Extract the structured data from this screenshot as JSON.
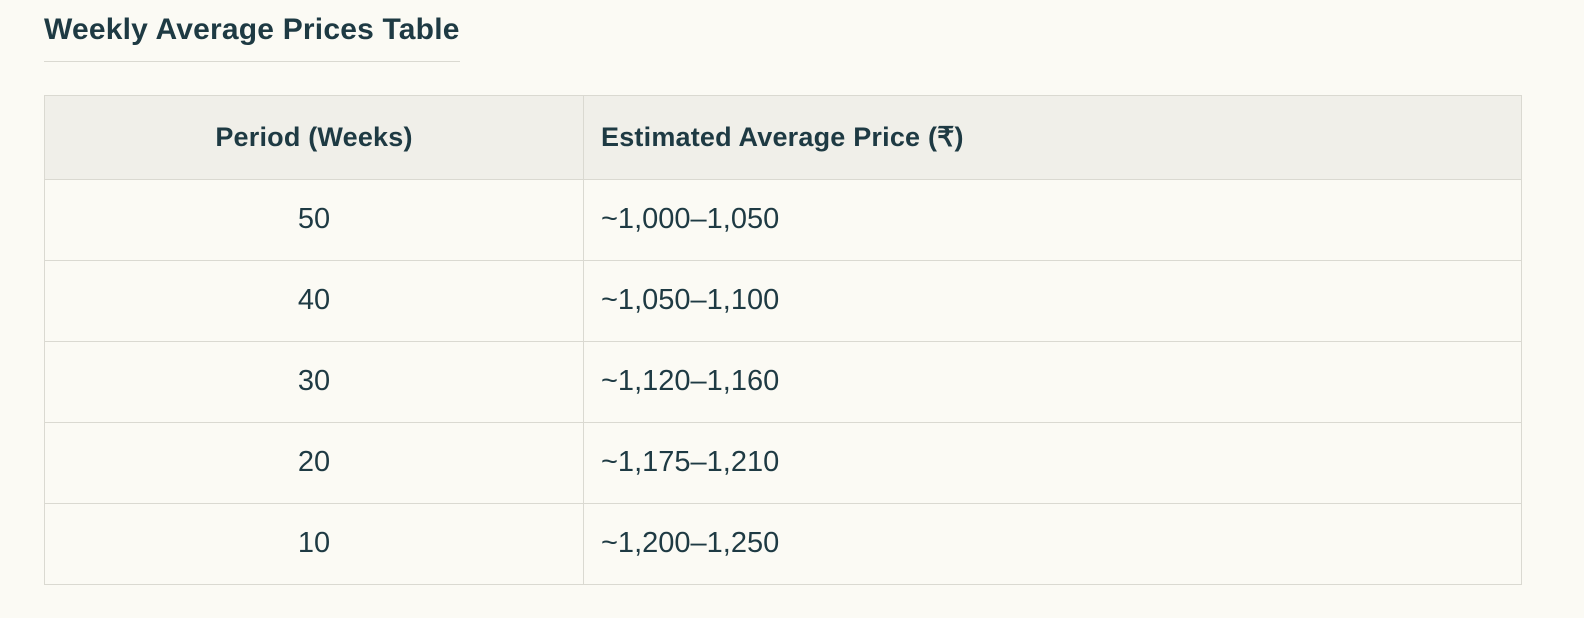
{
  "title": {
    "text": "Weekly Average Prices Table"
  },
  "table": {
    "headers": {
      "period": "Period (Weeks)",
      "price": "Estimated Average Price (₹)"
    },
    "rows": [
      {
        "period": "50",
        "price": "~1,000–1,050"
      },
      {
        "period": "40",
        "price": "~1,050–1,100"
      },
      {
        "period": "30",
        "price": "~1,120–1,160"
      },
      {
        "period": "20",
        "price": "~1,175–1,210"
      },
      {
        "period": "10",
        "price": "~1,200–1,250"
      }
    ]
  },
  "colors": {
    "text": "#1e3a43",
    "page_bg": "#fbfaf4",
    "header_bg": "#f0efe9",
    "border": "#dad9d1"
  },
  "chart_data": {
    "type": "table",
    "title": "Weekly Average Prices Table",
    "columns": [
      "Period (Weeks)",
      "Estimated Average Price (₹)"
    ],
    "rows": [
      [
        "50",
        "~1,000–1,050"
      ],
      [
        "40",
        "~1,050–1,100"
      ],
      [
        "30",
        "~1,120–1,160"
      ],
      [
        "20",
        "~1,175–1,210"
      ],
      [
        "10",
        "~1,200–1,250"
      ]
    ]
  }
}
